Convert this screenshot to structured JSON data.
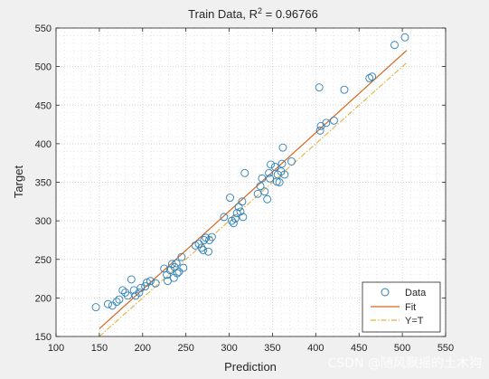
{
  "chart_data": {
    "type": "scatter",
    "title_prefix": "Train Data, R",
    "title_sup": "2",
    "title_suffix": " = 0.96766",
    "xlabel": "Prediction",
    "ylabel": "Target",
    "xlim": [
      100,
      550
    ],
    "ylim": [
      150,
      550
    ],
    "xticks": [
      "100",
      "150",
      "200",
      "250",
      "300",
      "350",
      "400",
      "450",
      "500",
      "550"
    ],
    "yticks": [
      "150",
      "200",
      "250",
      "300",
      "350",
      "400",
      "450",
      "500",
      "550"
    ],
    "grid": "dotted",
    "legend": {
      "position": "bottom-right",
      "items": [
        "Data",
        "Fit",
        "Y=T"
      ]
    },
    "colors": {
      "data": "#2b7fb8",
      "fit": "#d9661f",
      "identity": "#e0b43c"
    },
    "fit_line": {
      "x": [
        150,
        505
      ],
      "y": [
        160,
        521
      ]
    },
    "identity_line": {
      "x": [
        150,
        505
      ],
      "y": [
        150,
        505
      ]
    },
    "points": [
      [
        146,
        188
      ],
      [
        160,
        192
      ],
      [
        165,
        190
      ],
      [
        170,
        195
      ],
      [
        173,
        198
      ],
      [
        177,
        210
      ],
      [
        180,
        207
      ],
      [
        183,
        203
      ],
      [
        187,
        224
      ],
      [
        190,
        210
      ],
      [
        192,
        203
      ],
      [
        196,
        207
      ],
      [
        198,
        213
      ],
      [
        203,
        215
      ],
      [
        205,
        220
      ],
      [
        209,
        222
      ],
      [
        215,
        219
      ],
      [
        225,
        238
      ],
      [
        228,
        230
      ],
      [
        229,
        222
      ],
      [
        232,
        236
      ],
      [
        234,
        244
      ],
      [
        236,
        226
      ],
      [
        237,
        240
      ],
      [
        239,
        245
      ],
      [
        240,
        232
      ],
      [
        242,
        234
      ],
      [
        245,
        253
      ],
      [
        247,
        239
      ],
      [
        261,
        268
      ],
      [
        265,
        270
      ],
      [
        268,
        265
      ],
      [
        270,
        262
      ],
      [
        271,
        275
      ],
      [
        273,
        278
      ],
      [
        276,
        260
      ],
      [
        277,
        275
      ],
      [
        280,
        279
      ],
      [
        294,
        305
      ],
      [
        301,
        330
      ],
      [
        303,
        300
      ],
      [
        305,
        297
      ],
      [
        307,
        303
      ],
      [
        309,
        310
      ],
      [
        311,
        318
      ],
      [
        313,
        312
      ],
      [
        315,
        325
      ],
      [
        316,
        305
      ],
      [
        318,
        362
      ],
      [
        333,
        335
      ],
      [
        336,
        345
      ],
      [
        338,
        355
      ],
      [
        341,
        338
      ],
      [
        344,
        328
      ],
      [
        346,
        362
      ],
      [
        347,
        355
      ],
      [
        348,
        373
      ],
      [
        353,
        370
      ],
      [
        355,
        351
      ],
      [
        356,
        360
      ],
      [
        358,
        350
      ],
      [
        360,
        364
      ],
      [
        361,
        374
      ],
      [
        362,
        395
      ],
      [
        364,
        360
      ],
      [
        372,
        377
      ],
      [
        404,
        473
      ],
      [
        405,
        417
      ],
      [
        406,
        423
      ],
      [
        412,
        427
      ],
      [
        421,
        430
      ],
      [
        433,
        470
      ],
      [
        462,
        485
      ],
      [
        465,
        487
      ],
      [
        491,
        528
      ],
      [
        503,
        538
      ]
    ]
  },
  "watermark": "CSDN @随风飘摇的土木狗"
}
